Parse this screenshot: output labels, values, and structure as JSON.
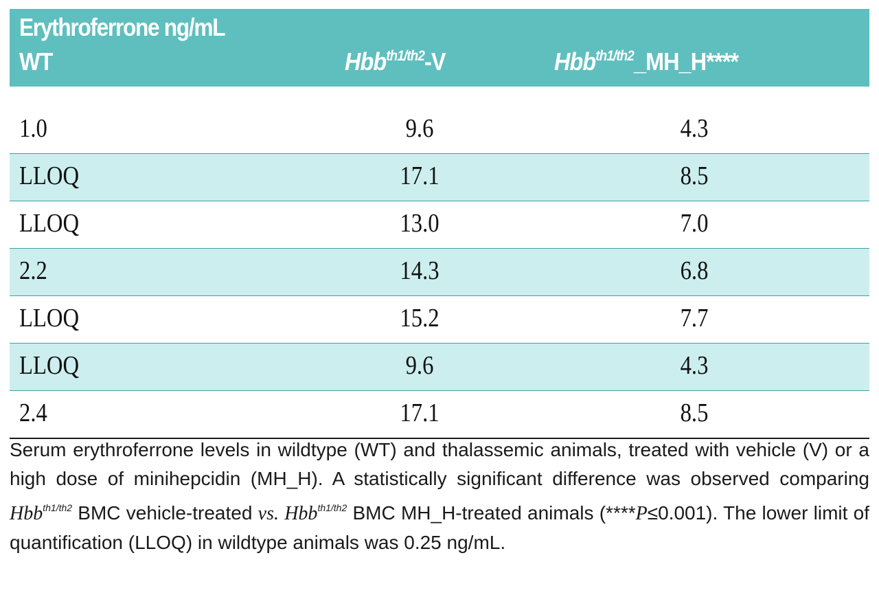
{
  "table": {
    "title": "Erythroferrone ng/mL",
    "columns": {
      "wt": "WT",
      "v_gene": "Hbb",
      "v_sup": "th1/th2",
      "v_suffix": "-V",
      "mh_gene": "Hbb",
      "mh_sup": "th1/th2",
      "mh_suffix": "_MH_H****"
    },
    "rows": [
      {
        "wt": "1.0",
        "v": "9.6",
        "mh": "4.3"
      },
      {
        "wt": "LLOQ",
        "v": "17.1",
        "mh": "8.5"
      },
      {
        "wt": "LLOQ",
        "v": "13.0",
        "mh": "7.0"
      },
      {
        "wt": "2.2",
        "v": "14.3",
        "mh": "6.8"
      },
      {
        "wt": "LLOQ",
        "v": "15.2",
        "mh": "7.7"
      },
      {
        "wt": "LLOQ",
        "v": "9.6",
        "mh": "4.3"
      },
      {
        "wt": "2.4",
        "v": "17.1",
        "mh": "8.5"
      }
    ]
  },
  "caption": {
    "part1": "Serum erythroferrone levels in wildtype (WT) and thalassemic animals, treated with vehicle (V) or a high dose of minihepcidin (MH_H). A statistically significant difference was observed comparing ",
    "gene1": "Hbb",
    "sup1": "th1/th2",
    "part2": " BMC vehicle-treated ",
    "vs": "vs.",
    "part3": " ",
    "gene2": "Hbb",
    "sup2": "th1/th2",
    "part4": " BMC MH_H-treated animals (****",
    "p": "P",
    "part5": "≤0.001). The lower limit of quantification (LLOQ) in wildtype animals was 0.25 ng/mL."
  },
  "colors": {
    "header_bg": "#5ebfbe",
    "row_shade": "#cdeeee",
    "rule": "#3aa3a2"
  }
}
